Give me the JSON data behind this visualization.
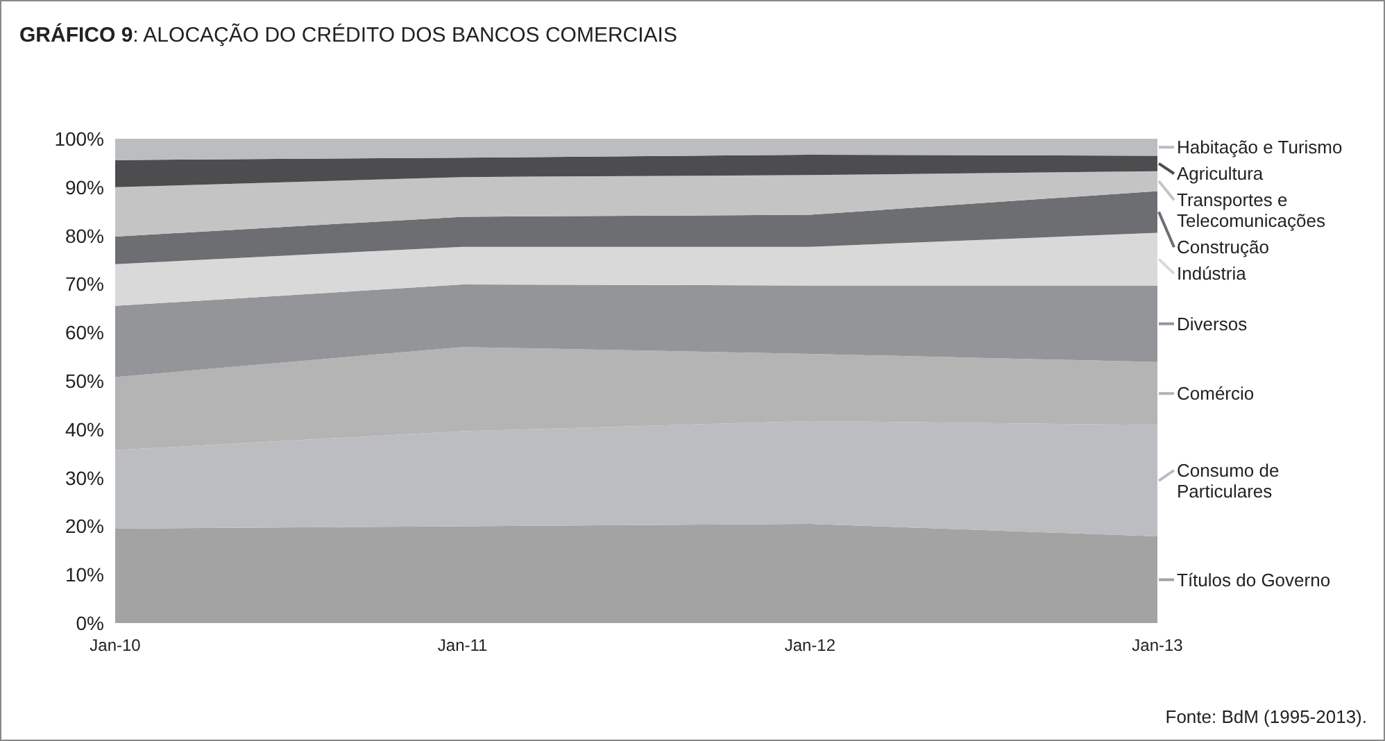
{
  "chart_data": {
    "type": "area",
    "title": "GRÁFICO 9: ALOCAÇÃO DO CRÉDITO DOS BANCOS COMERCIAIS",
    "annotations": [
      "Fonte: BdM (1995-2013)."
    ],
    "categories": [
      "Jan-10",
      "Jan-11",
      "Jan-12",
      "Jan-13"
    ],
    "stacked": true,
    "legend": "right",
    "ylim": [
      0,
      100
    ],
    "yticks": [
      {
        "value": 0,
        "label": "0%"
      },
      {
        "value": 10,
        "label": "10%"
      },
      {
        "value": 20,
        "label": "20%"
      },
      {
        "value": 30,
        "label": "30%"
      },
      {
        "value": 40,
        "label": "40%"
      },
      {
        "value": 50,
        "label": "50%"
      },
      {
        "value": 60,
        "label": "60%"
      },
      {
        "value": 70,
        "label": "70%"
      },
      {
        "value": 80,
        "label": "80%"
      },
      {
        "value": 90,
        "label": "90%"
      },
      {
        "value": 100,
        "label": "100%"
      }
    ],
    "series": [
      {
        "name": "Títulos do Governo",
        "color": "#a3a3a3",
        "values": [
          19.5,
          20.0,
          20.5,
          17.9
        ]
      },
      {
        "name": "Consumo de Particulares",
        "color": "#bcbdc0",
        "values": [
          16.2,
          19.6,
          21.2,
          23.0
        ]
      },
      {
        "name": "Comércio",
        "color": "#b4b4b4",
        "values": [
          15.1,
          17.4,
          13.9,
          13.0
        ]
      },
      {
        "name": "Diversos",
        "color": "#939598",
        "values": [
          14.7,
          12.9,
          14.1,
          15.8
        ]
      },
      {
        "name": "Indústria",
        "color": "#d9d9d9",
        "values": [
          8.6,
          7.8,
          8.0,
          10.9
        ]
      },
      {
        "name": "Construção",
        "color": "#6d6e71",
        "values": [
          5.7,
          6.2,
          6.6,
          8.6
        ]
      },
      {
        "name": "Transportes e Telecomunicações",
        "color": "#c4c4c4",
        "values": [
          10.2,
          8.2,
          8.2,
          4.1
        ]
      },
      {
        "name": "Agricultura",
        "color": "#4d4d4f",
        "values": [
          5.6,
          4.0,
          4.2,
          3.2
        ]
      },
      {
        "name": "Habitação e Turismo",
        "color": "#bcbdc0",
        "values": [
          4.4,
          3.9,
          3.3,
          3.5
        ]
      }
    ]
  }
}
